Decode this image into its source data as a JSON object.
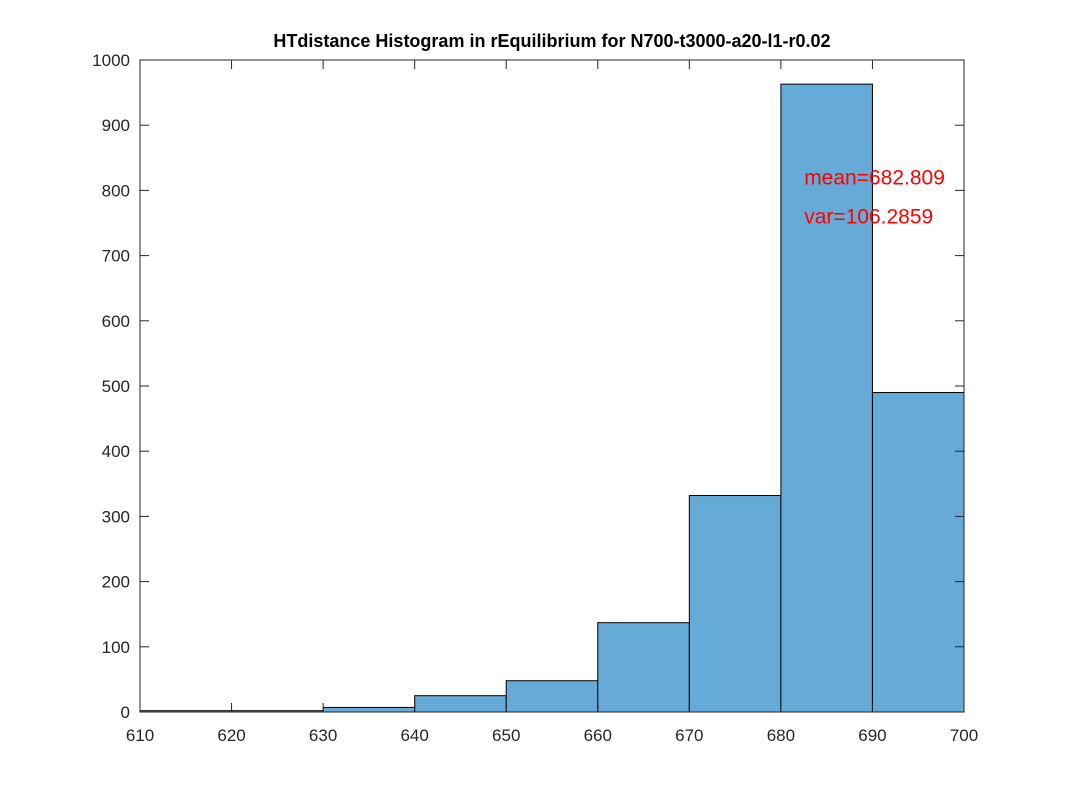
{
  "chart_data": {
    "type": "bar",
    "title": "HTdistance Histogram in rEquilibrium for N700-t3000-a20-l1-r0.02",
    "xlabel": "",
    "ylabel": "",
    "bin_edges": [
      610,
      620,
      630,
      640,
      650,
      660,
      670,
      680,
      690,
      700
    ],
    "values": [
      2,
      2,
      7,
      25,
      48,
      137,
      332,
      963,
      490
    ],
    "xlim": [
      610,
      700
    ],
    "ylim": [
      0,
      1000
    ],
    "xticks": [
      610,
      620,
      630,
      640,
      650,
      660,
      670,
      680,
      690,
      700
    ],
    "yticks": [
      0,
      100,
      200,
      300,
      400,
      500,
      600,
      700,
      800,
      900,
      1000
    ],
    "bar_color": "#66aad7",
    "edge_color": "#000000",
    "grid": false,
    "annotations": [
      {
        "text": "mean=682.809",
        "x": 682,
        "y": 820,
        "color": "#ff0000"
      },
      {
        "text": "var=106.2859",
        "x": 682,
        "y": 760,
        "color": "#ff0000"
      }
    ]
  }
}
